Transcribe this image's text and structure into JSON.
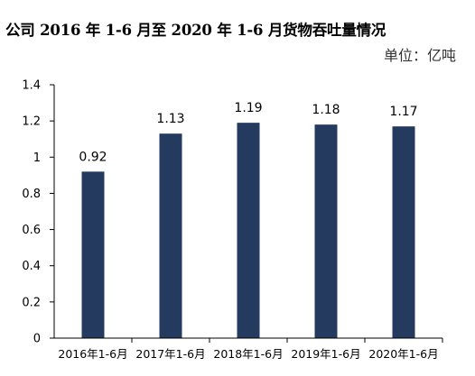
{
  "chart_data": {
    "type": "bar",
    "title": "公司 2016 年 1-6 月至 2020 年 1-6 月货物吞吐量情况",
    "unit": "单位：亿吨",
    "categories": [
      "2016年1-6月",
      "2017年1-6月",
      "2018年1-6月",
      "2019年1-6月",
      "2020年1-6月"
    ],
    "values": [
      0.92,
      1.13,
      1.19,
      1.18,
      1.17
    ],
    "data_labels": [
      "0.92",
      "1.13",
      "1.19",
      "1.18",
      "1.17"
    ],
    "y_ticks": [
      "0",
      "0.2",
      "0.4",
      "0.6",
      "0.8",
      "1",
      "1.2",
      "1.4"
    ],
    "ylim": [
      0,
      1.4
    ],
    "grid": false,
    "bar_color": "#243a5e"
  }
}
